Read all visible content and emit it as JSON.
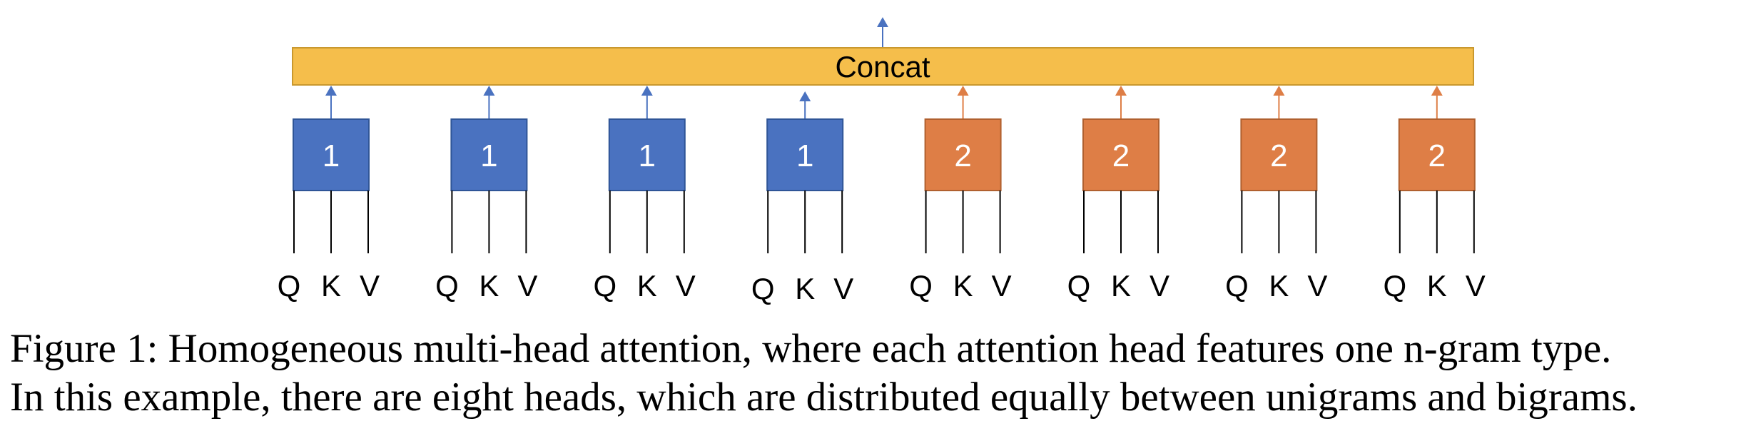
{
  "diagram": {
    "concat_label": "Concat",
    "colors": {
      "concat_fill": "#F5BE4B",
      "concat_stroke": "#C9982E",
      "unigram_fill": "#4A72C0",
      "unigram_stroke": "#2F5597",
      "bigram_fill": "#DE7E46",
      "bigram_stroke": "#B0602F",
      "line": "#000000",
      "label_text": "#ffffff"
    },
    "heads": [
      {
        "label": "1",
        "type": "unigram",
        "inputs": [
          "Q",
          "K",
          "V"
        ]
      },
      {
        "label": "1",
        "type": "unigram",
        "inputs": [
          "Q",
          "K",
          "V"
        ]
      },
      {
        "label": "1",
        "type": "unigram",
        "inputs": [
          "Q",
          "K",
          "V"
        ]
      },
      {
        "label": "1",
        "type": "unigram",
        "inputs": [
          "Q",
          "K",
          "V"
        ]
      },
      {
        "label": "2",
        "type": "bigram",
        "inputs": [
          "Q",
          "K",
          "V"
        ]
      },
      {
        "label": "2",
        "type": "bigram",
        "inputs": [
          "Q",
          "K",
          "V"
        ]
      },
      {
        "label": "2",
        "type": "bigram",
        "inputs": [
          "Q",
          "K",
          "V"
        ]
      },
      {
        "label": "2",
        "type": "bigram",
        "inputs": [
          "Q",
          "K",
          "V"
        ]
      }
    ]
  },
  "caption": {
    "line1": "Figure 1: Homogeneous multi-head attention, where each attention head features one n-gram type.",
    "line2": "In this example, there are eight heads, which are distributed equally between unigrams and bigrams."
  }
}
